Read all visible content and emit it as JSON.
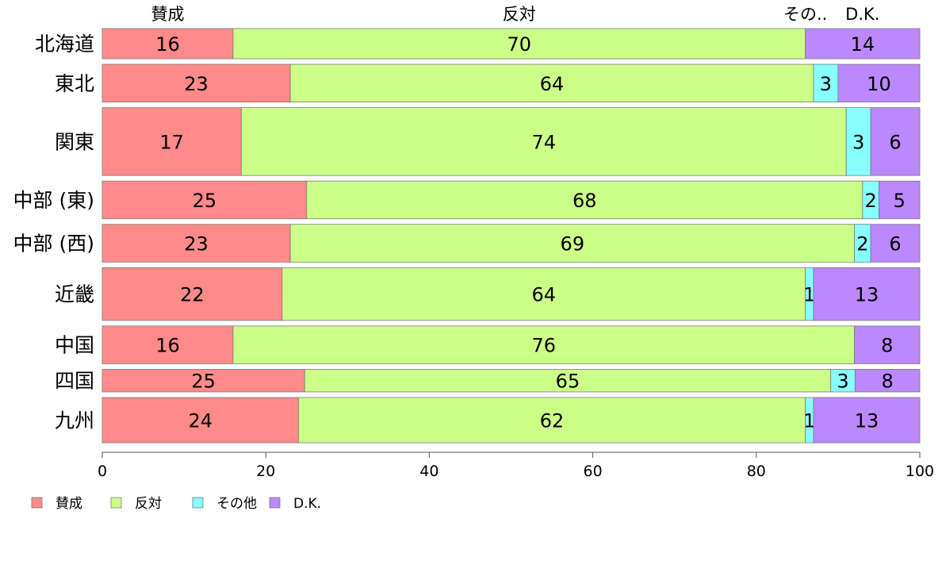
{
  "chart_data": {
    "type": "bar",
    "orientation": "horizontal",
    "stacked": true,
    "proportional_bar_heights": true,
    "categories": [
      "北海道",
      "東北",
      "関東",
      "中部 (東)",
      "中部 (西)",
      "近畿",
      "中国",
      "四国",
      "九州"
    ],
    "series": [
      {
        "name": "賛成",
        "top_label": "賛成",
        "color": "#FF8A8A",
        "values": [
          16,
          23,
          17,
          25,
          23,
          22,
          16,
          25,
          24
        ]
      },
      {
        "name": "反対",
        "top_label": "反対",
        "color": "#CCFF88",
        "values": [
          70,
          64,
          74,
          68,
          69,
          64,
          76,
          65,
          62
        ]
      },
      {
        "name": "その他",
        "top_label": "その..",
        "color": "#88FFFF",
        "values": [
          0,
          3,
          3,
          2,
          2,
          1,
          0,
          3,
          1
        ]
      },
      {
        "name": "D.K.",
        "top_label": "D.K.",
        "color": "#BB88FF",
        "values": [
          14,
          10,
          6,
          5,
          6,
          13,
          8,
          8,
          13
        ]
      }
    ],
    "row_weights": [
      4,
      5,
      9,
      5,
      5,
      7,
      5,
      3,
      6
    ],
    "xlim": [
      0,
      100
    ],
    "x_ticks": [
      "0",
      "20",
      "40",
      "60",
      "80",
      "100"
    ],
    "legend_position": "bottom-left",
    "grid": false
  }
}
